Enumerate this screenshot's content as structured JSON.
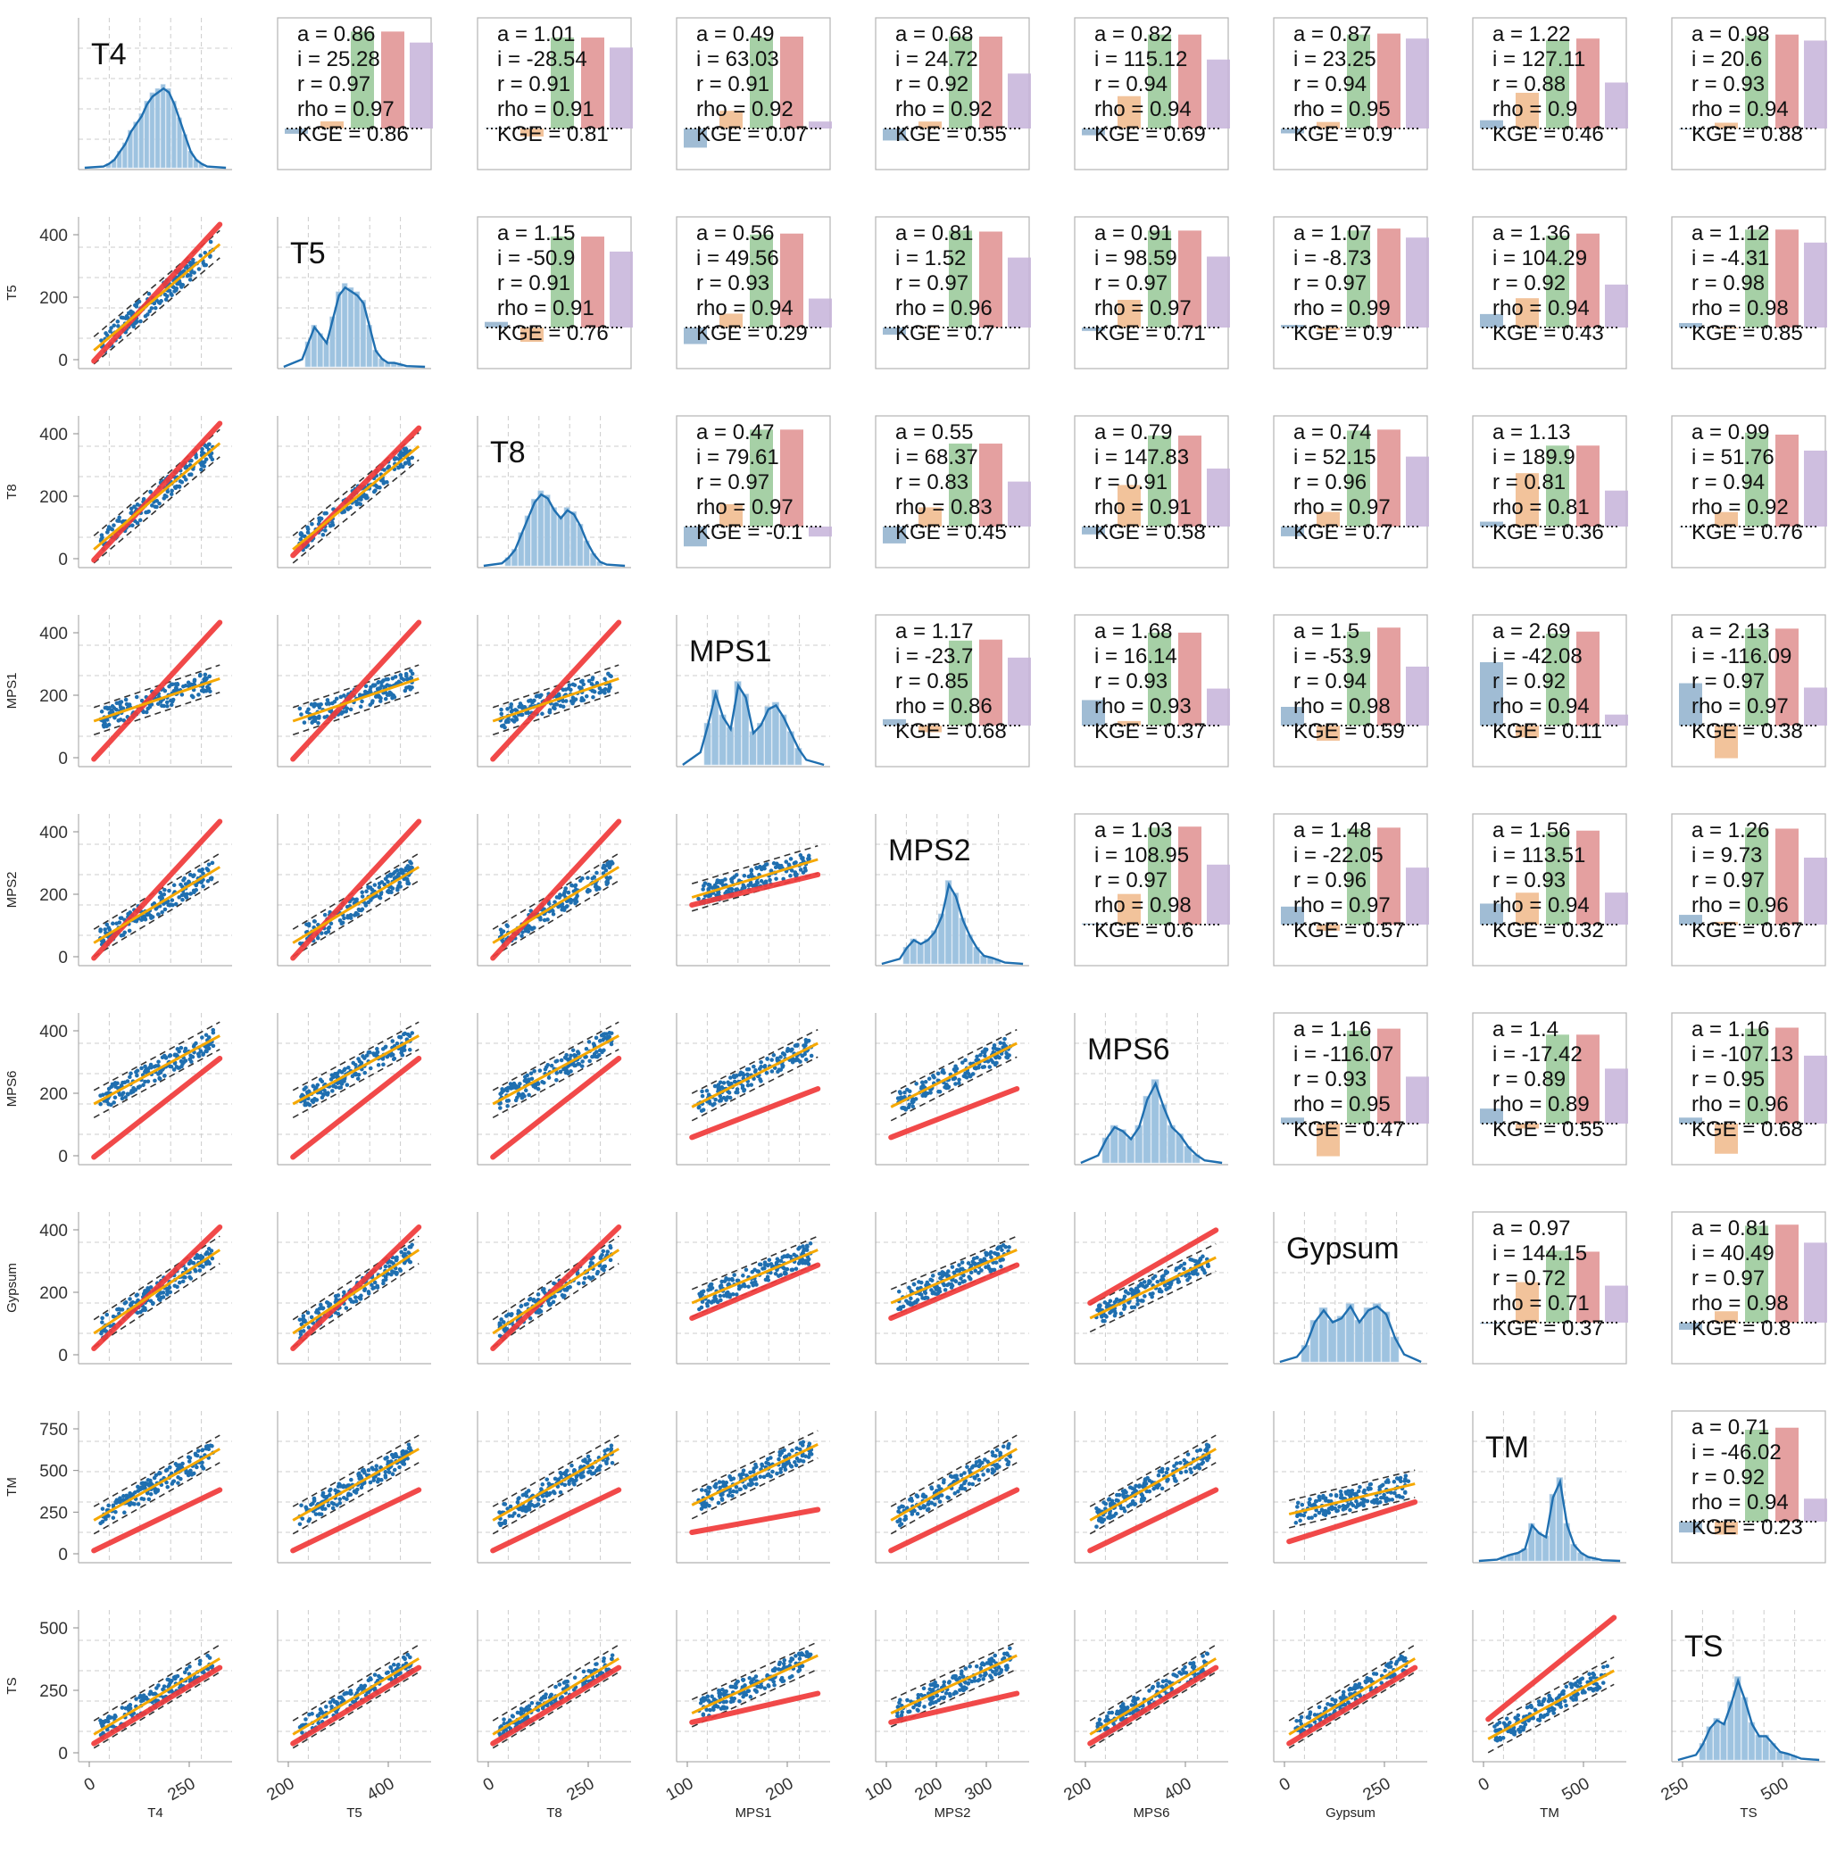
{
  "chart_data": {
    "type": "pairplot",
    "variables": [
      "T4",
      "T5",
      "T8",
      "MPS1",
      "MPS2",
      "MPS6",
      "Gypsum",
      "TM",
      "TS"
    ],
    "diagonal_labels": [
      "T4",
      "T5",
      "T8",
      "MPS1",
      "MPS2",
      "MPS6",
      "Gypsum",
      "TM",
      "TS"
    ],
    "x_axis_labels": [
      "T4",
      "T5",
      "T8",
      "MPS1",
      "MPS2",
      "MPS6",
      "Gypsum",
      "TM",
      "TS"
    ],
    "y_axis_labels": [
      "",
      "T5",
      "T8",
      "MPS1",
      "MPS2",
      "MPS6",
      "Gypsum",
      "TM",
      "TS"
    ],
    "x_ticks": [
      [
        "0",
        "250"
      ],
      [
        "200",
        "400"
      ],
      [
        "0",
        "250"
      ],
      [
        "100",
        "200"
      ],
      [
        "100",
        "200",
        "300"
      ],
      [
        "200",
        "400"
      ],
      [
        "0",
        "250"
      ],
      [
        "0",
        "500"
      ],
      [
        "250",
        "500"
      ]
    ],
    "y_ticks": [
      [],
      [
        "0",
        "200",
        "400"
      ],
      [
        "0",
        "200",
        "400"
      ],
      [
        "0",
        "200",
        "400"
      ],
      [
        "0",
        "200",
        "400"
      ],
      [
        "0",
        "200",
        "400"
      ],
      [
        "0",
        "200",
        "400"
      ],
      [
        "0",
        "250",
        "500",
        "750"
      ],
      [
        "0",
        "250",
        "500"
      ]
    ],
    "metric_bar_colors": {
      "a": "#8fb0cc",
      "i": "#f0b98a",
      "r": "#96c896",
      "rho": "#df8f8f",
      "KGE": "#c6b3d9"
    },
    "line_colors": {
      "points": "#1f6fb0",
      "regression": "#f5a800",
      "identity": "#f03a3a",
      "confidence": "#333333"
    },
    "stats": {
      "0-1": {
        "a": "0.86",
        "i": "25.28",
        "r": "0.97",
        "rho": "0.97",
        "KGE": "0.86"
      },
      "0-2": {
        "a": "1.01",
        "i": "-28.54",
        "r": "0.91",
        "rho": "0.91",
        "KGE": "0.81"
      },
      "0-3": {
        "a": "0.49",
        "i": "63.03",
        "r": "0.91",
        "rho": "0.92",
        "KGE": "0.07"
      },
      "0-4": {
        "a": "0.68",
        "i": "24.72",
        "r": "0.92",
        "rho": "0.92",
        "KGE": "0.55"
      },
      "0-5": {
        "a": "0.82",
        "i": "115.12",
        "r": "0.94",
        "rho": "0.94",
        "KGE": "0.69"
      },
      "0-6": {
        "a": "0.87",
        "i": "23.25",
        "r": "0.94",
        "rho": "0.95",
        "KGE": "0.9"
      },
      "0-7": {
        "a": "1.22",
        "i": "127.11",
        "r": "0.88",
        "rho": "0.9",
        "KGE": "0.46"
      },
      "0-8": {
        "a": "0.98",
        "i": "20.6",
        "r": "0.93",
        "rho": "0.94",
        "KGE": "0.88"
      },
      "1-2": {
        "a": "1.15",
        "i": "-50.9",
        "r": "0.91",
        "rho": "0.91",
        "KGE": "0.76"
      },
      "1-3": {
        "a": "0.56",
        "i": "49.56",
        "r": "0.93",
        "rho": "0.94",
        "KGE": "0.29"
      },
      "1-4": {
        "a": "0.81",
        "i": "1.52",
        "r": "0.97",
        "rho": "0.96",
        "KGE": "0.7"
      },
      "1-5": {
        "a": "0.91",
        "i": "98.59",
        "r": "0.97",
        "rho": "0.97",
        "KGE": "0.71"
      },
      "1-6": {
        "a": "1.07",
        "i": "-8.73",
        "r": "0.97",
        "rho": "0.99",
        "KGE": "0.9"
      },
      "1-7": {
        "a": "1.36",
        "i": "104.29",
        "r": "0.92",
        "rho": "0.94",
        "KGE": "0.43"
      },
      "1-8": {
        "a": "1.12",
        "i": "-4.31",
        "r": "0.98",
        "rho": "0.98",
        "KGE": "0.85"
      },
      "2-3": {
        "a": "0.47",
        "i": "79.61",
        "r": "0.97",
        "rho": "0.97",
        "KGE": "-0.1"
      },
      "2-4": {
        "a": "0.55",
        "i": "68.37",
        "r": "0.83",
        "rho": "0.83",
        "KGE": "0.45"
      },
      "2-5": {
        "a": "0.79",
        "i": "147.83",
        "r": "0.91",
        "rho": "0.91",
        "KGE": "0.58"
      },
      "2-6": {
        "a": "0.74",
        "i": "52.15",
        "r": "0.96",
        "rho": "0.97",
        "KGE": "0.7"
      },
      "2-7": {
        "a": "1.13",
        "i": "189.9",
        "r": "0.81",
        "rho": "0.81",
        "KGE": "0.36"
      },
      "2-8": {
        "a": "0.99",
        "i": "51.76",
        "r": "0.94",
        "rho": "0.92",
        "KGE": "0.76"
      },
      "3-4": {
        "a": "1.17",
        "i": "-23.7",
        "r": "0.85",
        "rho": "0.86",
        "KGE": "0.68"
      },
      "3-5": {
        "a": "1.68",
        "i": "16.14",
        "r": "0.93",
        "rho": "0.93",
        "KGE": "0.37"
      },
      "3-6": {
        "a": "1.5",
        "i": "-53.9",
        "r": "0.94",
        "rho": "0.98",
        "KGE": "0.59"
      },
      "3-7": {
        "a": "2.69",
        "i": "-42.08",
        "r": "0.92",
        "rho": "0.94",
        "KGE": "0.11"
      },
      "3-8": {
        "a": "2.13",
        "i": "-116.09",
        "r": "0.97",
        "rho": "0.97",
        "KGE": "0.38"
      },
      "4-5": {
        "a": "1.03",
        "i": "108.95",
        "r": "0.97",
        "rho": "0.98",
        "KGE": "0.6"
      },
      "4-6": {
        "a": "1.48",
        "i": "-22.05",
        "r": "0.96",
        "rho": "0.97",
        "KGE": "0.57"
      },
      "4-7": {
        "a": "1.56",
        "i": "113.51",
        "r": "0.93",
        "rho": "0.94",
        "KGE": "0.32"
      },
      "4-8": {
        "a": "1.26",
        "i": "9.73",
        "r": "0.97",
        "rho": "0.96",
        "KGE": "0.67"
      },
      "5-6": {
        "a": "1.16",
        "i": "-116.07",
        "r": "0.93",
        "rho": "0.95",
        "KGE": "0.47"
      },
      "5-7": {
        "a": "1.4",
        "i": "-17.42",
        "r": "0.89",
        "rho": "0.89",
        "KGE": "0.55"
      },
      "5-8": {
        "a": "1.16",
        "i": "-107.13",
        "r": "0.95",
        "rho": "0.96",
        "KGE": "0.68"
      },
      "6-7": {
        "a": "0.97",
        "i": "144.15",
        "r": "0.72",
        "rho": "0.71",
        "KGE": "0.37"
      },
      "6-8": {
        "a": "0.81",
        "i": "40.49",
        "r": "0.97",
        "rho": "0.98",
        "KGE": "0.8"
      },
      "7-8": {
        "a": "0.71",
        "i": "-46.02",
        "r": "0.92",
        "rho": "0.94",
        "KGE": "0.23"
      }
    }
  }
}
